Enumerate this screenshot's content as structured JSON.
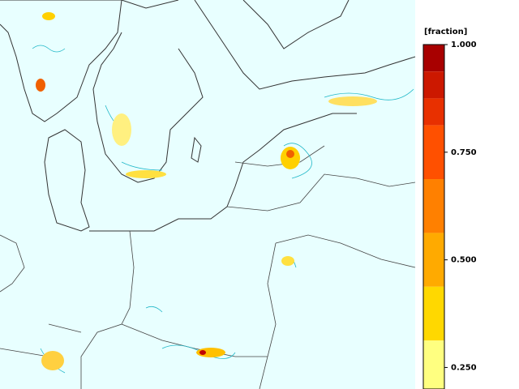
{
  "colorbar": {
    "label": "[fraction]",
    "lim": [
      0.2,
      1.0
    ],
    "bands": [
      {
        "from": 0.9375,
        "to": 1.0,
        "color": "#a80000"
      },
      {
        "from": 0.875,
        "to": 0.9375,
        "color": "#cc1800"
      },
      {
        "from": 0.8125,
        "to": 0.875,
        "color": "#e83000"
      },
      {
        "from": 0.6875,
        "to": 0.8125,
        "color": "#ff5000"
      },
      {
        "from": 0.5625,
        "to": 0.6875,
        "color": "#ff8000"
      },
      {
        "from": 0.4375,
        "to": 0.5625,
        "color": "#ffaa00"
      },
      {
        "from": 0.3125,
        "to": 0.4375,
        "color": "#ffd800"
      },
      {
        "from": 0.2,
        "to": 0.3125,
        "color": "#ffff80"
      }
    ],
    "ticks": [
      {
        "value": 1.0,
        "label": "1.000"
      },
      {
        "value": 0.75,
        "label": "0.750"
      },
      {
        "value": 0.5,
        "label": "0.500"
      },
      {
        "value": 0.25,
        "label": "0.250"
      }
    ]
  }
}
